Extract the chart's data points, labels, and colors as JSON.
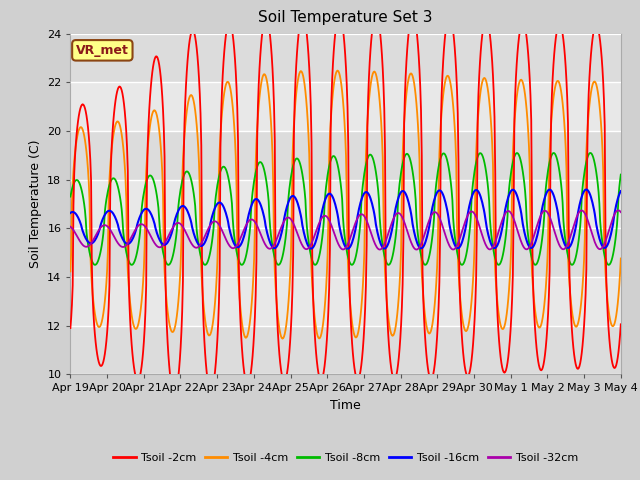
{
  "title": "Soil Temperature Set 3",
  "xlabel": "Time",
  "ylabel": "Soil Temperature (C)",
  "ylim": [
    10,
    24
  ],
  "yticks": [
    10,
    12,
    14,
    16,
    18,
    20,
    22,
    24
  ],
  "x_labels": [
    "Apr 19",
    "Apr 20",
    "Apr 21",
    "Apr 22",
    "Apr 23",
    "Apr 24",
    "Apr 25",
    "Apr 26",
    "Apr 27",
    "Apr 28",
    "Apr 29",
    "Apr 30",
    "May 1",
    "May 2",
    "May 3",
    "May 4"
  ],
  "annotation_text": "VR_met",
  "legend_labels": [
    "Tsoil -2cm",
    "Tsoil -4cm",
    "Tsoil -8cm",
    "Tsoil -16cm",
    "Tsoil -32cm"
  ],
  "colors": [
    "#ff0000",
    "#ff8c00",
    "#00bb00",
    "#0000ff",
    "#aa00aa"
  ],
  "fig_bg": "#d0d0d0",
  "plot_bg": "#e8e8e8",
  "grid_color": "#ffffff",
  "band_colors": [
    "#dcdcdc",
    "#e8e8e8"
  ]
}
